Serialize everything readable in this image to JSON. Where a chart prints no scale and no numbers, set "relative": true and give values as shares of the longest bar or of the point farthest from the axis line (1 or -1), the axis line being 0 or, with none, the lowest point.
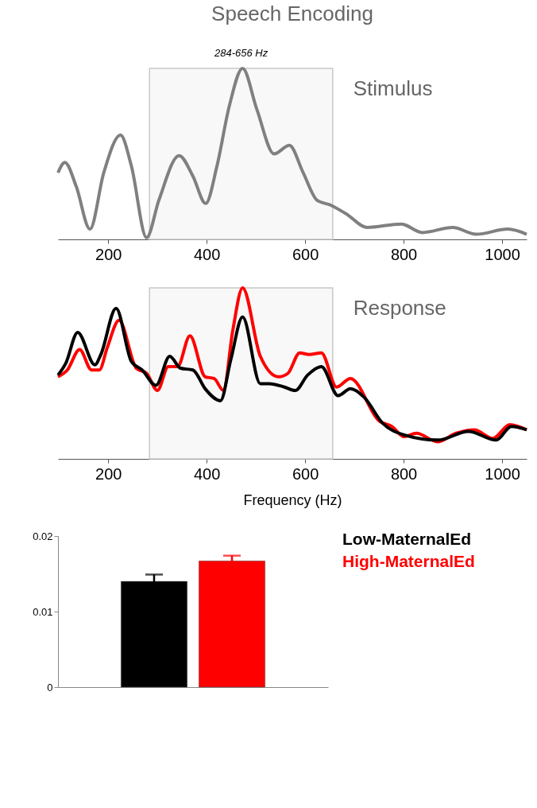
{
  "chart_data": [
    {
      "type": "line",
      "title": "Speech Encoding",
      "relative": true,
      "tick_labels": "x",
      "xlim": [
        98,
        1050
      ],
      "xticks": [
        200,
        400,
        600,
        800,
        1000
      ],
      "annotations": [
        "Stimulus"
      ],
      "bands": [
        {
          "axis": "x",
          "from": 284,
          "to": 656,
          "label": "284-656 Hz",
          "color": "#f8f8f8"
        }
      ],
      "series": [
        {
          "color": "#808080",
          "x": [
            98,
            112,
            135,
            163,
            191,
            225,
            247,
            278,
            303,
            344,
            372,
            398,
            421,
            446,
            473,
            502,
            537,
            568,
            596,
            624,
            652,
            683,
            726,
            795,
            838,
            900,
            947,
            1012,
            1050
          ],
          "values": [
            0.39,
            0.45,
            0.31,
            0.06,
            0.39,
            0.61,
            0.43,
            0.01,
            0.23,
            0.49,
            0.37,
            0.21,
            0.43,
            0.78,
            1.0,
            0.76,
            0.5,
            0.55,
            0.39,
            0.23,
            0.2,
            0.15,
            0.07,
            0.09,
            0.04,
            0.07,
            0.03,
            0.06,
            0.03
          ]
        }
      ]
    },
    {
      "type": "line",
      "relative": true,
      "tick_labels": "x",
      "xlabel": "Frequency (Hz)",
      "xlim": [
        98,
        1050
      ],
      "xticks": [
        200,
        400,
        600,
        800,
        1000
      ],
      "annotations": [
        "Response"
      ],
      "bands": [
        {
          "axis": "x",
          "from": 284,
          "to": 656,
          "color": "#f8f8f8"
        }
      ],
      "series": [
        {
          "color": "#ff0000",
          "x": [
            98,
            117,
            142,
            166,
            182,
            198,
            222,
            257,
            278,
            300,
            322,
            341,
            366,
            397,
            415,
            434,
            453,
            473,
            509,
            546,
            565,
            589,
            608,
            633,
            664,
            692,
            751,
            776,
            801,
            826,
            869,
            907,
            944,
            981,
            1016,
            1050
          ],
          "values": [
            0.48,
            0.52,
            0.64,
            0.52,
            0.52,
            0.65,
            0.81,
            0.53,
            0.5,
            0.4,
            0.54,
            0.54,
            0.72,
            0.48,
            0.47,
            0.4,
            0.75,
            1.0,
            0.6,
            0.48,
            0.5,
            0.62,
            0.61,
            0.62,
            0.42,
            0.47,
            0.22,
            0.19,
            0.13,
            0.15,
            0.1,
            0.15,
            0.17,
            0.12,
            0.2,
            0.17
          ]
        },
        {
          "color": "#000000",
          "x": [
            98,
            114,
            138,
            173,
            185,
            216,
            247,
            269,
            297,
            325,
            347,
            372,
            397,
            428,
            449,
            473,
            509,
            527,
            558,
            580,
            605,
            633,
            667,
            692,
            720,
            757,
            801,
            869,
            932,
            988,
            1019,
            1050
          ],
          "values": [
            0.49,
            0.56,
            0.74,
            0.55,
            0.61,
            0.88,
            0.57,
            0.52,
            0.43,
            0.6,
            0.53,
            0.52,
            0.41,
            0.34,
            0.58,
            0.83,
            0.44,
            0.44,
            0.42,
            0.4,
            0.49,
            0.54,
            0.37,
            0.41,
            0.36,
            0.21,
            0.14,
            0.11,
            0.16,
            0.11,
            0.19,
            0.17
          ]
        }
      ]
    },
    {
      "type": "bar",
      "categories": [
        null
      ],
      "ylim": [
        0,
        0.02
      ],
      "yticks": [
        0,
        0.01,
        0.02
      ],
      "legend": "top right",
      "series": [
        {
          "name": "Low-MaternalEd",
          "color": "#000000",
          "values": [
            0.014
          ],
          "errors": [
            0.0009
          ]
        },
        {
          "name": "High-MaternalEd",
          "color": "#ff0000",
          "values": [
            0.0167
          ],
          "errors": [
            0.0007
          ]
        }
      ]
    }
  ]
}
